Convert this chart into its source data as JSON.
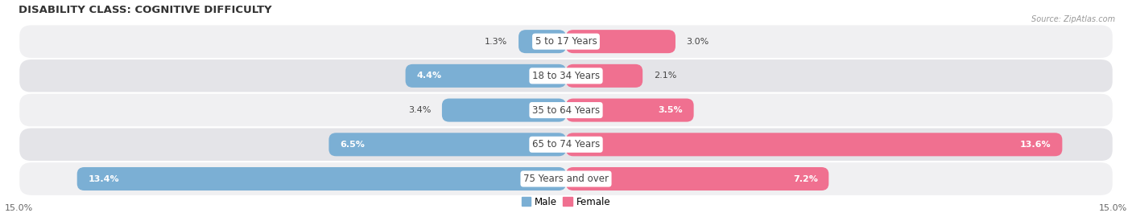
{
  "title": "DISABILITY CLASS: COGNITIVE DIFFICULTY",
  "source": "Source: ZipAtlas.com",
  "categories": [
    "5 to 17 Years",
    "18 to 34 Years",
    "35 to 64 Years",
    "65 to 74 Years",
    "75 Years and over"
  ],
  "male_values": [
    1.3,
    4.4,
    3.4,
    6.5,
    13.4
  ],
  "female_values": [
    3.0,
    2.1,
    3.5,
    13.6,
    7.2
  ],
  "x_max": 15.0,
  "male_color": "#7bafd4",
  "female_color": "#f07090",
  "row_colors": [
    "#f0f0f2",
    "#e4e4e8"
  ],
  "label_fontsize": 8.5,
  "value_fontsize": 8.0,
  "title_fontsize": 9.5,
  "source_fontsize": 7.0,
  "axis_label_fontsize": 8.0
}
